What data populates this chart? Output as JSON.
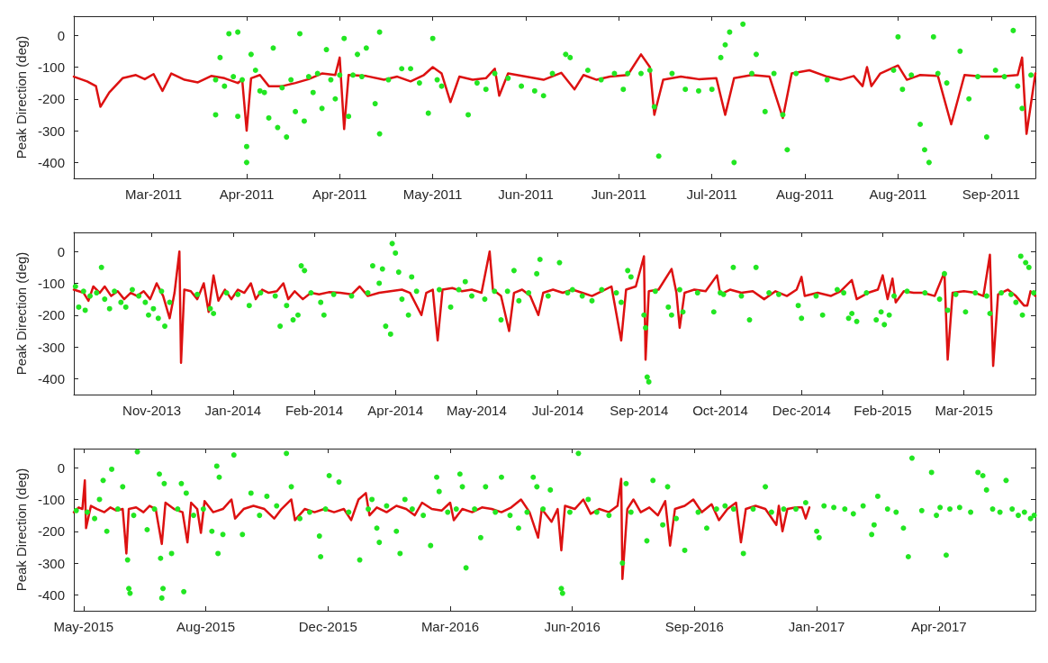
{
  "chart_data": [
    {
      "type": "line",
      "ylabel": "Peak Direction (deg)",
      "grid": false,
      "xlim": [
        "2011-02-24",
        "2011-09-29"
      ],
      "ylim": [
        -450,
        60
      ],
      "yticks": [
        -400,
        -300,
        -200,
        -100,
        0
      ],
      "xticks": [
        {
          "value": "2011-03-14",
          "label": "Mar-2011"
        },
        {
          "value": "2011-04-04",
          "label": "Apr-2011"
        },
        {
          "value": "2011-04-25",
          "label": "Apr-2011"
        },
        {
          "value": "2011-05-16",
          "label": "May-2011"
        },
        {
          "value": "2011-06-06",
          "label": "Jun-2011"
        },
        {
          "value": "2011-06-27",
          "label": "Jun-2011"
        },
        {
          "value": "2011-07-18",
          "label": "Jul-2011"
        },
        {
          "value": "2011-08-08",
          "label": "Aug-2011"
        },
        {
          "value": "2011-08-29",
          "label": "Aug-2011"
        },
        {
          "value": "2011-09-19",
          "label": "Sep-2011"
        }
      ],
      "series": [
        {
          "type": "line",
          "color": "#dd1111",
          "marker": "none",
          "line_style": "solid",
          "x": [
            "2011-02-24",
            "2011-02-27",
            "2011-03-01",
            "2011-03-02",
            "2011-03-04",
            "2011-03-07",
            "2011-03-10",
            "2011-03-12",
            "2011-03-14",
            "2011-03-16",
            "2011-03-18",
            "2011-03-21",
            "2011-03-24",
            "2011-03-27",
            "2011-03-30",
            "2011-04-02",
            "2011-04-03",
            "2011-04-04",
            "2011-04-05",
            "2011-04-07",
            "2011-04-09",
            "2011-04-12",
            "2011-04-15",
            "2011-04-18",
            "2011-04-21",
            "2011-04-24",
            "2011-04-25",
            "2011-04-26",
            "2011-04-27",
            "2011-05-01",
            "2011-05-05",
            "2011-05-08",
            "2011-05-11",
            "2011-05-14",
            "2011-05-16",
            "2011-05-18",
            "2011-05-20",
            "2011-05-22",
            "2011-05-25",
            "2011-05-28",
            "2011-05-30",
            "2011-05-31",
            "2011-06-02",
            "2011-06-06",
            "2011-06-10",
            "2011-06-14",
            "2011-06-17",
            "2011-06-19",
            "2011-06-22",
            "2011-06-25",
            "2011-06-29",
            "2011-07-02",
            "2011-07-04",
            "2011-07-05",
            "2011-07-07",
            "2011-07-11",
            "2011-07-15",
            "2011-07-19",
            "2011-07-21",
            "2011-07-23",
            "2011-07-27",
            "2011-07-31",
            "2011-08-03",
            "2011-08-05",
            "2011-08-09",
            "2011-08-13",
            "2011-08-16",
            "2011-08-19",
            "2011-08-21",
            "2011-08-22",
            "2011-08-23",
            "2011-08-25",
            "2011-08-29",
            "2011-08-31",
            "2011-09-03",
            "2011-09-07",
            "2011-09-10",
            "2011-09-13",
            "2011-09-17",
            "2011-09-21",
            "2011-09-25",
            "2011-09-26",
            "2011-09-27",
            "2011-09-29"
          ],
          "values": [
            -130,
            -145,
            -160,
            -225,
            -180,
            -135,
            -125,
            -138,
            -122,
            -175,
            -120,
            -140,
            -148,
            -128,
            -135,
            -150,
            -140,
            -300,
            -135,
            -125,
            -160,
            -160,
            -150,
            -138,
            -120,
            -125,
            -70,
            -295,
            -125,
            -128,
            -140,
            -130,
            -145,
            -125,
            -100,
            -120,
            -210,
            -130,
            -140,
            -135,
            -105,
            -190,
            -120,
            -130,
            -140,
            -118,
            -170,
            -125,
            -140,
            -130,
            -125,
            -60,
            -100,
            -250,
            -140,
            -130,
            -138,
            -135,
            -250,
            -135,
            -125,
            -130,
            -260,
            -120,
            -110,
            -130,
            -140,
            -128,
            -160,
            -100,
            -160,
            -120,
            -95,
            -140,
            -125,
            -128,
            -280,
            -125,
            -130,
            -130,
            -125,
            -70,
            -310,
            -120
          ]
        },
        {
          "type": "scatter",
          "color": "#22e622",
          "marker": "circle",
          "x": [
            "2011-03-28",
            "2011-03-28",
            "2011-03-29",
            "2011-03-30",
            "2011-03-31",
            "2011-04-01",
            "2011-04-02",
            "2011-04-02",
            "2011-04-03",
            "2011-04-04",
            "2011-04-04",
            "2011-04-05",
            "2011-04-06",
            "2011-04-07",
            "2011-04-08",
            "2011-04-09",
            "2011-04-10",
            "2011-04-11",
            "2011-04-12",
            "2011-04-13",
            "2011-04-14",
            "2011-04-15",
            "2011-04-16",
            "2011-04-17",
            "2011-04-18",
            "2011-04-19",
            "2011-04-20",
            "2011-04-21",
            "2011-04-22",
            "2011-04-23",
            "2011-04-24",
            "2011-04-25",
            "2011-04-26",
            "2011-04-27",
            "2011-04-28",
            "2011-04-29",
            "2011-04-30",
            "2011-05-01",
            "2011-05-03",
            "2011-05-04",
            "2011-05-04",
            "2011-05-06",
            "2011-05-09",
            "2011-05-11",
            "2011-05-13",
            "2011-05-15",
            "2011-05-16",
            "2011-05-17",
            "2011-05-18",
            "2011-05-24",
            "2011-05-26",
            "2011-05-28",
            "2011-05-30",
            "2011-06-02",
            "2011-06-05",
            "2011-06-08",
            "2011-06-10",
            "2011-06-12",
            "2011-06-15",
            "2011-06-16",
            "2011-06-20",
            "2011-06-23",
            "2011-06-26",
            "2011-06-28",
            "2011-06-29",
            "2011-07-02",
            "2011-07-04",
            "2011-07-05",
            "2011-07-06",
            "2011-07-09",
            "2011-07-12",
            "2011-07-15",
            "2011-07-18",
            "2011-07-20",
            "2011-07-21",
            "2011-07-22",
            "2011-07-23",
            "2011-07-25",
            "2011-07-27",
            "2011-07-28",
            "2011-07-30",
            "2011-08-01",
            "2011-08-03",
            "2011-08-04",
            "2011-08-06",
            "2011-08-13",
            "2011-08-28",
            "2011-08-29",
            "2011-08-30",
            "2011-09-01",
            "2011-09-03",
            "2011-09-04",
            "2011-09-05",
            "2011-09-06",
            "2011-09-07",
            "2011-09-09",
            "2011-09-12",
            "2011-09-14",
            "2011-09-16",
            "2011-09-18",
            "2011-09-20",
            "2011-09-22",
            "2011-09-24",
            "2011-09-25",
            "2011-09-26",
            "2011-09-28"
          ],
          "values": [
            -140,
            -250,
            -70,
            -160,
            5,
            -130,
            10,
            -255,
            -140,
            -350,
            -400,
            -60,
            -110,
            -175,
            -180,
            -260,
            -40,
            -290,
            -165,
            -320,
            -140,
            -240,
            5,
            -270,
            -130,
            -180,
            -120,
            -230,
            -45,
            -140,
            -200,
            -125,
            -10,
            -255,
            -125,
            -60,
            -130,
            -40,
            -215,
            10,
            -310,
            -140,
            -105,
            -105,
            -150,
            -245,
            -10,
            -140,
            -160,
            -250,
            -150,
            -170,
            -120,
            -135,
            -160,
            -175,
            -190,
            -120,
            -60,
            -70,
            -110,
            -140,
            -120,
            -170,
            -120,
            -120,
            -110,
            -225,
            -380,
            -120,
            -170,
            -175,
            -170,
            -70,
            -30,
            10,
            -400,
            35,
            -120,
            -60,
            -240,
            -120,
            -250,
            -360,
            -120,
            -140,
            -110,
            -5,
            -170,
            -125,
            -280,
            -360,
            -400,
            -5,
            -120,
            -150,
            -50,
            -200,
            -130,
            -320,
            -110,
            -130,
            15,
            -160,
            -230,
            -125
          ]
        }
      ]
    },
    {
      "type": "line",
      "ylabel": "Peak Direction (deg)",
      "grid": false,
      "xlim": [
        "2013-09-25",
        "2015-05-10"
      ],
      "ylim": [
        -450,
        60
      ],
      "yticks": [
        -400,
        -300,
        -200,
        -100,
        0
      ],
      "xticks": [
        {
          "value": "2013-11-12",
          "label": "Nov-2013"
        },
        {
          "value": "2014-01-01",
          "label": "Jan-2014"
        },
        {
          "value": "2014-02-20",
          "label": "Feb-2014"
        },
        {
          "value": "2014-04-11",
          "label": "Apr-2014"
        },
        {
          "value": "2014-05-31",
          "label": "May-2014"
        },
        {
          "value": "2014-07-20",
          "label": "Jul-2014"
        },
        {
          "value": "2014-09-08",
          "label": "Sep-2014"
        },
        {
          "value": "2014-10-28",
          "label": "Oct-2014"
        },
        {
          "value": "2014-12-17",
          "label": "Dec-2014"
        },
        {
          "value": "2015-02-05",
          "label": "Feb-2015"
        },
        {
          "value": "2015-03-27",
          "label": "Mar-2015"
        }
      ],
      "series": [
        {
          "type": "line",
          "color": "#dd1111",
          "marker": "none",
          "line_style": "solid",
          "x": [
            "2013-09-25",
            "2013-10-01",
            "2013-10-04",
            "2013-10-07",
            "2013-10-11",
            "2013-10-14",
            "2013-10-18",
            "2013-10-22",
            "2013-10-26",
            "2013-10-30",
            "2013-11-03",
            "2013-11-07",
            "2013-11-11",
            "2013-11-15",
            "2013-11-19",
            "2013-11-23",
            "2013-11-26",
            "2013-11-29",
            "2013-11-30",
            "2013-12-02",
            "2013-12-06",
            "2013-12-10",
            "2013-12-14",
            "2013-12-17",
            "2013-12-20",
            "2013-12-23",
            "2013-12-27",
            "2013-12-31",
            "2014-01-04",
            "2014-01-08",
            "2014-01-12",
            "2014-01-15",
            "2014-01-19",
            "2014-01-23",
            "2014-01-28",
            "2014-02-01",
            "2014-02-04",
            "2014-02-08",
            "2014-02-13",
            "2014-02-18",
            "2014-02-23",
            "2014-03-01",
            "2014-03-08",
            "2014-03-15",
            "2014-03-20",
            "2014-03-25",
            "2014-04-01",
            "2014-04-08",
            "2014-04-15",
            "2014-04-20",
            "2014-04-27",
            "2014-04-30",
            "2014-05-04",
            "2014-05-07",
            "2014-05-10",
            "2014-05-16",
            "2014-05-22",
            "2014-05-28",
            "2014-06-03",
            "2014-06-08",
            "2014-06-10",
            "2014-06-15",
            "2014-06-20",
            "2014-06-23",
            "2014-06-28",
            "2014-07-03",
            "2014-07-08",
            "2014-07-11",
            "2014-07-17",
            "2014-07-23",
            "2014-07-29",
            "2014-08-04",
            "2014-08-10",
            "2014-08-16",
            "2014-08-22",
            "2014-08-28",
            "2014-08-31",
            "2014-09-06",
            "2014-09-11",
            "2014-09-12",
            "2014-09-14",
            "2014-09-20",
            "2014-09-28",
            "2014-10-01",
            "2014-10-03",
            "2014-10-06",
            "2014-10-12",
            "2014-10-19",
            "2014-10-26",
            "2014-10-28",
            "2014-11-03",
            "2014-11-10",
            "2014-11-17",
            "2014-11-24",
            "2014-12-01",
            "2014-12-08",
            "2014-12-14",
            "2014-12-17",
            "2014-12-19",
            "2014-12-27",
            "2015-01-04",
            "2015-01-10",
            "2015-01-17",
            "2015-01-20",
            "2015-01-27",
            "2015-02-02",
            "2015-02-05",
            "2015-02-08",
            "2015-02-11",
            "2015-02-13",
            "2015-02-18",
            "2015-02-24",
            "2015-03-02",
            "2015-03-09",
            "2015-03-15",
            "2015-03-17",
            "2015-03-20",
            "2015-03-27",
            "2015-04-03",
            "2015-04-08",
            "2015-04-12",
            "2015-04-14",
            "2015-04-17",
            "2015-04-23",
            "2015-04-28",
            "2015-05-03",
            "2015-05-05",
            "2015-05-07",
            "2015-05-10"
          ],
          "values": [
            -120,
            -130,
            -155,
            -110,
            -130,
            -110,
            -140,
            -125,
            -150,
            -130,
            -140,
            -125,
            -150,
            -100,
            -140,
            -210,
            -130,
            0,
            -350,
            -120,
            -125,
            -150,
            -100,
            -190,
            -75,
            -155,
            -120,
            -150,
            -120,
            -130,
            -100,
            -150,
            -120,
            -130,
            -125,
            -100,
            -150,
            -125,
            -150,
            -130,
            -135,
            -128,
            -130,
            -135,
            -110,
            -140,
            -130,
            -125,
            -120,
            -130,
            -200,
            -130,
            -120,
            -280,
            -120,
            -115,
            -125,
            -120,
            -130,
            0,
            -120,
            -140,
            -250,
            -130,
            -120,
            -140,
            -200,
            -130,
            -120,
            -130,
            -120,
            -130,
            -140,
            -125,
            -110,
            -280,
            -120,
            -110,
            -15,
            -340,
            -125,
            -120,
            -55,
            -130,
            -240,
            -130,
            -120,
            -125,
            -75,
            -135,
            -120,
            -130,
            -125,
            -150,
            -125,
            -140,
            -120,
            -80,
            -140,
            -130,
            -140,
            -125,
            -90,
            -150,
            -130,
            -120,
            -75,
            -150,
            -85,
            -160,
            -125,
            -130,
            -130,
            -140,
            -65,
            -340,
            -130,
            -125,
            -130,
            -140,
            -10,
            -360,
            -135,
            -120,
            -140,
            -170,
            -170,
            -125,
            -140
          ]
        },
        {
          "type": "scatter",
          "color": "#22e622",
          "marker": "circle",
          "x": [
            "2013-09-26",
            "2013-09-28",
            "2013-10-01",
            "2013-10-02",
            "2013-10-05",
            "2013-10-09",
            "2013-10-12",
            "2013-10-14",
            "2013-10-17",
            "2013-10-20",
            "2013-10-24",
            "2013-10-27",
            "2013-10-31",
            "2013-11-04",
            "2013-11-08",
            "2013-11-10",
            "2013-11-13",
            "2013-11-16",
            "2013-11-18",
            "2013-11-20",
            "2013-11-23",
            "2013-12-10",
            "2013-12-18",
            "2013-12-20",
            "2013-12-28",
            "2014-01-04",
            "2014-01-11",
            "2014-01-18",
            "2014-01-27",
            "2014-01-30",
            "2014-02-03",
            "2014-02-07",
            "2014-02-10",
            "2014-02-12",
            "2014-02-14",
            "2014-02-18",
            "2014-02-24",
            "2014-02-26",
            "2014-03-04",
            "2014-03-15",
            "2014-03-25",
            "2014-03-28",
            "2014-04-01",
            "2014-04-03",
            "2014-04-05",
            "2014-04-08",
            "2014-04-09",
            "2014-04-11",
            "2014-04-13",
            "2014-04-15",
            "2014-04-19",
            "2014-04-21",
            "2014-04-24",
            "2014-05-08",
            "2014-05-15",
            "2014-05-20",
            "2014-05-24",
            "2014-05-28",
            "2014-06-05",
            "2014-06-11",
            "2014-06-15",
            "2014-06-19",
            "2014-06-23",
            "2014-06-26",
            "2014-07-02",
            "2014-07-07",
            "2014-07-09",
            "2014-07-14",
            "2014-07-21",
            "2014-07-26",
            "2014-07-29",
            "2014-08-04",
            "2014-08-10",
            "2014-08-16",
            "2014-08-25",
            "2014-08-28",
            "2014-09-01",
            "2014-09-03",
            "2014-09-11",
            "2014-09-12",
            "2014-09-13",
            "2014-09-14",
            "2014-09-18",
            "2014-09-26",
            "2014-09-28",
            "2014-10-03",
            "2014-10-05",
            "2014-10-14",
            "2014-10-24",
            "2014-10-28",
            "2014-10-30",
            "2014-11-05",
            "2014-11-10",
            "2014-11-15",
            "2014-11-19",
            "2014-11-27",
            "2014-12-03",
            "2014-12-15",
            "2014-12-17",
            "2014-12-26",
            "2014-12-30",
            "2015-01-08",
            "2015-01-12",
            "2015-01-15",
            "2015-01-17",
            "2015-01-20",
            "2015-01-26",
            "2015-02-01",
            "2015-02-04",
            "2015-02-06",
            "2015-02-09",
            "2015-02-12",
            "2015-02-20",
            "2015-03-03",
            "2015-03-12",
            "2015-03-15",
            "2015-03-17",
            "2015-03-22",
            "2015-03-28",
            "2015-04-03",
            "2015-04-10",
            "2015-04-12",
            "2015-04-19",
            "2015-04-25",
            "2015-04-28",
            "2015-05-01",
            "2015-05-02",
            "2015-05-04",
            "2015-05-06",
            "2015-05-09"
          ],
          "values": [
            -110,
            -175,
            -125,
            -185,
            -140,
            -130,
            -50,
            -150,
            -180,
            -125,
            -160,
            -175,
            -120,
            -140,
            -160,
            -200,
            -180,
            -210,
            -125,
            -235,
            -160,
            -135,
            -180,
            -195,
            -130,
            -135,
            -170,
            -130,
            -140,
            -235,
            -170,
            -215,
            -200,
            -45,
            -60,
            -130,
            -160,
            -200,
            -135,
            -140,
            -130,
            -45,
            -100,
            -55,
            -235,
            -260,
            25,
            -5,
            -65,
            -150,
            -200,
            -80,
            -125,
            -120,
            -175,
            -120,
            -95,
            -140,
            -150,
            -125,
            -215,
            -125,
            -60,
            -155,
            -130,
            -70,
            -25,
            -140,
            -35,
            -130,
            -120,
            -140,
            -155,
            -120,
            -130,
            -160,
            -60,
            -80,
            -200,
            -240,
            -395,
            -410,
            -125,
            -175,
            -200,
            -120,
            -190,
            -130,
            -190,
            -130,
            -135,
            -50,
            -140,
            -215,
            -50,
            -130,
            -135,
            -170,
            -210,
            -140,
            -200,
            -120,
            -130,
            -210,
            -195,
            -220,
            -130,
            -215,
            -190,
            -230,
            -200,
            -140,
            -125,
            -130,
            -150,
            -70,
            -185,
            -135,
            -190,
            -130,
            -140,
            -195,
            -130,
            -135,
            -160,
            -15,
            -200,
            -35,
            -50,
            -130
          ]
        }
      ]
    },
    {
      "type": "line",
      "ylabel": "Peak Direction (deg)",
      "grid": false,
      "xlim": [
        "2015-05-09",
        "2017-07-04"
      ],
      "ylim": [
        -450,
        60
      ],
      "yticks": [
        -400,
        -300,
        -200,
        -100,
        0
      ],
      "xticks": [
        {
          "value": "2015-05-17",
          "label": "May-2015"
        },
        {
          "value": "2015-08-25",
          "label": "Aug-2015"
        },
        {
          "value": "2015-12-03",
          "label": "Dec-2015"
        },
        {
          "value": "2016-03-12",
          "label": "Mar-2016"
        },
        {
          "value": "2016-06-20",
          "label": "Jun-2016"
        },
        {
          "value": "2016-09-28",
          "label": "Sep-2016"
        },
        {
          "value": "2017-01-06",
          "label": "Jan-2017"
        },
        {
          "value": "2017-04-16",
          "label": "Apr-2017"
        }
      ],
      "series": [
        {
          "type": "line",
          "color": "#dd1111",
          "marker": "none",
          "line_style": "solid",
          "x": [
            "2015-05-09",
            "2015-05-13",
            "2015-05-16",
            "2015-05-18",
            "2015-05-19",
            "2015-05-23",
            "2015-05-28",
            "2015-06-03",
            "2015-06-08",
            "2015-06-13",
            "2015-06-18",
            "2015-06-21",
            "2015-06-23",
            "2015-06-29",
            "2015-07-05",
            "2015-07-10",
            "2015-07-15",
            "2015-07-20",
            "2015-07-23",
            "2015-07-30",
            "2015-08-06",
            "2015-08-10",
            "2015-08-13",
            "2015-08-18",
            "2015-08-21",
            "2015-08-24",
            "2015-08-31",
            "2015-09-08",
            "2015-09-15",
            "2015-09-18",
            "2015-09-25",
            "2015-10-03",
            "2015-10-12",
            "2015-10-20",
            "2015-10-26",
            "2015-11-03",
            "2015-11-06",
            "2015-11-14",
            "2015-11-22",
            "2015-11-30",
            "2015-12-08",
            "2015-12-16",
            "2015-12-22",
            "2015-12-28",
            "2016-01-03",
            "2016-01-06",
            "2016-01-12",
            "2016-01-20",
            "2016-01-28",
            "2016-02-05",
            "2016-02-12",
            "2016-02-18",
            "2016-02-26",
            "2016-03-05",
            "2016-03-12",
            "2016-03-15",
            "2016-03-22",
            "2016-03-30",
            "2016-04-07",
            "2016-04-15",
            "2016-04-23",
            "2016-05-01",
            "2016-05-09",
            "2016-05-16",
            "2016-05-23",
            "2016-05-26",
            "2016-06-03",
            "2016-06-08",
            "2016-06-11",
            "2016-06-14",
            "2016-06-22",
            "2016-06-29",
            "2016-07-05",
            "2016-07-12",
            "2016-07-20",
            "2016-07-27",
            "2016-07-30",
            "2016-07-31",
            "2016-08-04",
            "2016-08-09",
            "2016-08-15",
            "2016-08-22",
            "2016-08-29",
            "2016-09-04",
            "2016-09-08",
            "2016-09-12",
            "2016-09-20",
            "2016-09-27",
            "2016-10-04",
            "2016-10-12",
            "2016-10-18",
            "2016-10-25",
            "2016-11-01",
            "2016-11-05",
            "2016-11-09",
            "2016-11-17",
            "2016-11-25",
            "2016-12-04",
            "2016-12-06",
            "2016-12-09",
            "2016-12-13",
            "2016-12-20",
            "2016-12-25",
            "2016-12-28",
            "2016-12-31"
          ],
          "values": [
            -140,
            -125,
            -130,
            -40,
            -190,
            -120,
            -130,
            -140,
            -125,
            -135,
            -130,
            -270,
            -130,
            -125,
            -140,
            -120,
            -130,
            -240,
            -110,
            -130,
            -140,
            -235,
            -110,
            -130,
            -205,
            -105,
            -140,
            -130,
            -100,
            -160,
            -130,
            -120,
            -130,
            -160,
            -130,
            -100,
            -165,
            -130,
            -140,
            -130,
            -140,
            -130,
            -165,
            -100,
            -80,
            -150,
            -125,
            -140,
            -120,
            -130,
            -150,
            -110,
            -130,
            -135,
            -110,
            -165,
            -130,
            -140,
            -125,
            -130,
            -140,
            -125,
            -100,
            -140,
            -220,
            -130,
            -170,
            -130,
            -260,
            -120,
            -130,
            -100,
            -145,
            -130,
            -140,
            -120,
            -35,
            -350,
            -130,
            -100,
            -140,
            -125,
            -150,
            -105,
            -245,
            -130,
            -120,
            -100,
            -140,
            -115,
            -165,
            -130,
            -110,
            -235,
            -130,
            -120,
            -130,
            -180,
            -120,
            -200,
            -130,
            -125,
            -125,
            -160,
            -125
          ]
        },
        {
          "type": "scatter",
          "color": "#22e622",
          "marker": "circle",
          "x": [
            "2015-05-11",
            "2015-05-20",
            "2015-05-26",
            "2015-05-30",
            "2015-06-02",
            "2015-06-05",
            "2015-06-09",
            "2015-06-14",
            "2015-06-18",
            "2015-06-22",
            "2015-06-23",
            "2015-06-24",
            "2015-06-27",
            "2015-06-30",
            "2015-07-08",
            "2015-07-14",
            "2015-07-18",
            "2015-07-19",
            "2015-07-20",
            "2015-07-21",
            "2015-07-22",
            "2015-07-28",
            "2015-08-02",
            "2015-08-05",
            "2015-08-07",
            "2015-08-09",
            "2015-08-15",
            "2015-08-23",
            "2015-08-30",
            "2015-09-03",
            "2015-09-04",
            "2015-09-05",
            "2015-09-08",
            "2015-09-17",
            "2015-09-24",
            "2015-10-01",
            "2015-10-08",
            "2015-10-14",
            "2015-10-22",
            "2015-10-30",
            "2015-11-03",
            "2015-11-10",
            "2015-11-18",
            "2015-11-26",
            "2015-11-27",
            "2015-12-01",
            "2015-12-04",
            "2015-12-12",
            "2015-12-20",
            "2015-12-29",
            "2016-01-05",
            "2016-01-08",
            "2016-01-12",
            "2016-01-14",
            "2016-01-20",
            "2016-01-28",
            "2016-01-31",
            "2016-02-04",
            "2016-02-10",
            "2016-02-19",
            "2016-02-25",
            "2016-03-01",
            "2016-03-03",
            "2016-03-10",
            "2016-03-17",
            "2016-03-20",
            "2016-03-22",
            "2016-03-25",
            "2016-04-01",
            "2016-04-06",
            "2016-04-10",
            "2016-04-18",
            "2016-04-23",
            "2016-04-30",
            "2016-05-07",
            "2016-05-14",
            "2016-05-19",
            "2016-05-22",
            "2016-05-27",
            "2016-06-02",
            "2016-06-11",
            "2016-06-12",
            "2016-06-18",
            "2016-06-25",
            "2016-07-03",
            "2016-07-10",
            "2016-07-20",
            "2016-07-31",
            "2016-08-03",
            "2016-08-07",
            "2016-08-20",
            "2016-08-25",
            "2016-09-02",
            "2016-09-06",
            "2016-09-13",
            "2016-09-20",
            "2016-10-01",
            "2016-10-08",
            "2016-10-16",
            "2016-10-23",
            "2016-10-30",
            "2016-11-07",
            "2016-11-15",
            "2016-11-25",
            "2016-11-30",
            "2016-12-10",
            "2016-12-20",
            "2016-12-28",
            "2017-01-06",
            "2017-01-08",
            "2017-01-12",
            "2017-01-20",
            "2017-01-29",
            "2017-02-05",
            "2017-02-13",
            "2017-02-20",
            "2017-02-22",
            "2017-02-25",
            "2017-03-05",
            "2017-03-12",
            "2017-03-18",
            "2017-03-22",
            "2017-03-25",
            "2017-04-02",
            "2017-04-10",
            "2017-04-14",
            "2017-04-17",
            "2017-04-22",
            "2017-04-25",
            "2017-05-03",
            "2017-05-12",
            "2017-05-18",
            "2017-05-22",
            "2017-05-25",
            "2017-05-30",
            "2017-06-05",
            "2017-06-10",
            "2017-06-15",
            "2017-06-20",
            "2017-06-25",
            "2017-06-30",
            "2017-07-03"
          ],
          "values": [
            -135,
            -140,
            -160,
            -100,
            -40,
            -200,
            -5,
            -130,
            -60,
            -290,
            -380,
            -395,
            -150,
            50,
            -195,
            -130,
            -20,
            -285,
            -410,
            -380,
            -50,
            -270,
            -130,
            -50,
            -390,
            -80,
            -150,
            -130,
            -200,
            5,
            -270,
            -30,
            -210,
            40,
            -210,
            -80,
            -150,
            -90,
            -120,
            45,
            -60,
            -160,
            -140,
            -215,
            -280,
            -130,
            -25,
            -45,
            -140,
            -290,
            -130,
            -100,
            -190,
            -235,
            -120,
            -200,
            -270,
            -100,
            -130,
            -150,
            -245,
            -30,
            -75,
            -140,
            -130,
            -20,
            -60,
            -315,
            -130,
            -220,
            -60,
            -140,
            -30,
            -150,
            -190,
            -140,
            -30,
            -60,
            -130,
            -70,
            -380,
            -395,
            -140,
            45,
            -100,
            -140,
            -150,
            -300,
            -50,
            -140,
            -230,
            -40,
            -180,
            -60,
            -160,
            -260,
            -140,
            -190,
            -130,
            -120,
            -130,
            -270,
            -130,
            -60,
            -140,
            -130,
            -130,
            -110,
            -200,
            -220,
            -120,
            -125,
            -130,
            -145,
            -120,
            -210,
            -180,
            -90,
            -130,
            -140,
            -190,
            -280,
            30,
            -135,
            -15,
            -150,
            -125,
            -275,
            -130,
            -125,
            -140,
            -15,
            -25,
            -70,
            -130,
            -140,
            -40,
            -130,
            -150,
            -140,
            -160,
            -150
          ]
        }
      ]
    }
  ]
}
